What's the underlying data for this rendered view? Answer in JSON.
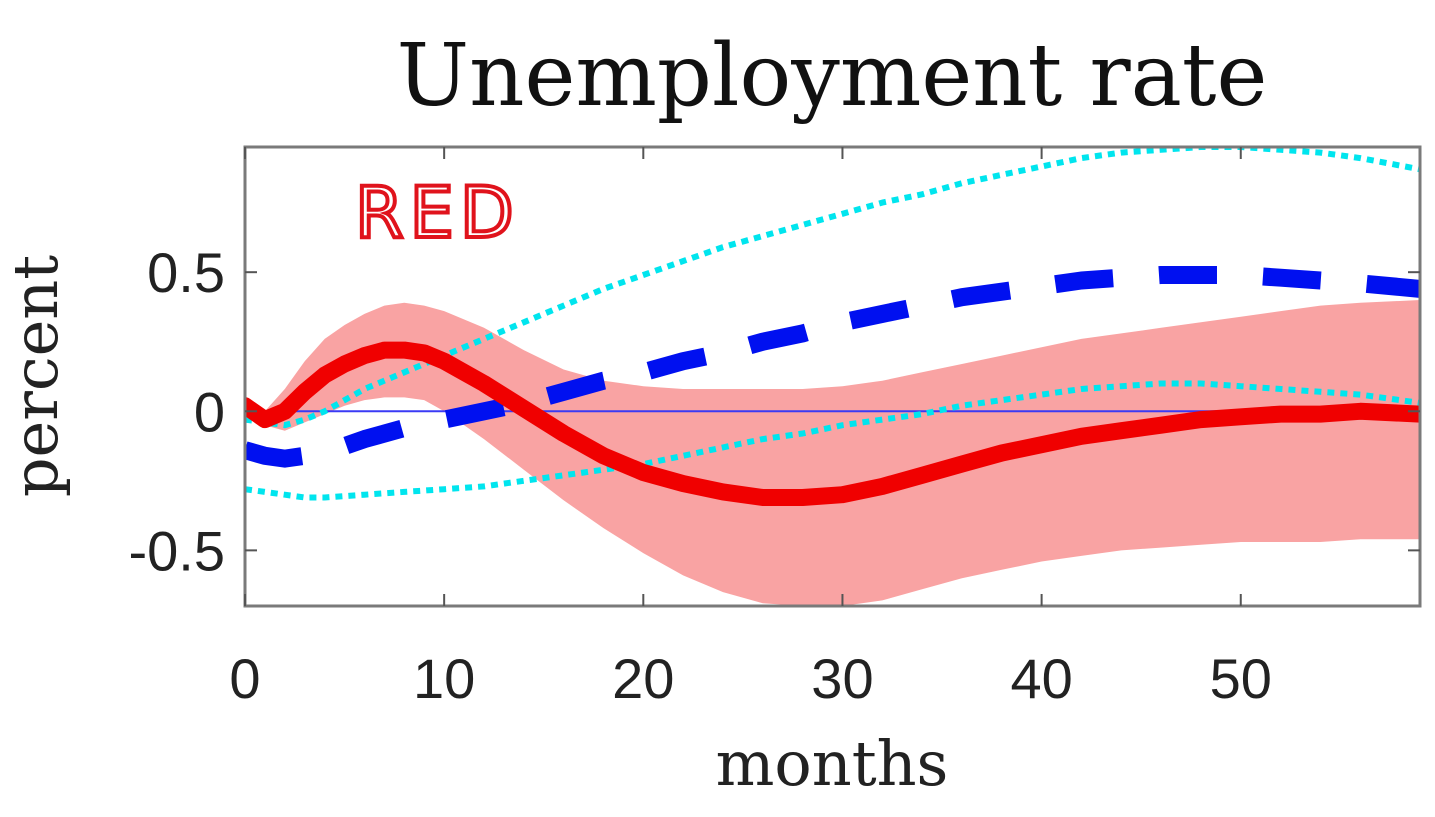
{
  "chart_data": {
    "type": "line",
    "title": "Unemployment rate",
    "xlabel": "months",
    "ylabel": "percent",
    "xlim": [
      0,
      59
    ],
    "ylim": [
      -0.7,
      0.95
    ],
    "xticks": [
      0,
      10,
      20,
      30,
      40,
      50
    ],
    "yticks": [
      -0.5,
      0,
      0.5
    ],
    "ytick_labels": [
      "-0.5",
      "0",
      "0.5"
    ],
    "grid": false,
    "legend": "none",
    "annotation": "RED",
    "colors": {
      "red_line": "#f00000",
      "red_band": "#f9a3a3",
      "blue_dashed": "#0010f0",
      "cyan_dotted": "#00e5ee",
      "zero_line": "#3a3af5",
      "annotation": "#e0131c"
    },
    "series": [
      {
        "style": "solid-red",
        "x": [
          0,
          1,
          2,
          3,
          4,
          5,
          6,
          7,
          8,
          9,
          10,
          12,
          14,
          16,
          18,
          20,
          22,
          24,
          26,
          28,
          30,
          32,
          34,
          36,
          38,
          40,
          42,
          44,
          46,
          48,
          50,
          52,
          54,
          56,
          59
        ],
        "y": [
          0.02,
          -0.03,
          0.0,
          0.07,
          0.13,
          0.17,
          0.2,
          0.22,
          0.22,
          0.21,
          0.18,
          0.1,
          0.01,
          -0.08,
          -0.16,
          -0.22,
          -0.26,
          -0.29,
          -0.31,
          -0.31,
          -0.3,
          -0.27,
          -0.23,
          -0.19,
          -0.15,
          -0.12,
          -0.09,
          -0.07,
          -0.05,
          -0.03,
          -0.02,
          -0.01,
          -0.01,
          0.0,
          -0.01
        ]
      },
      {
        "style": "dashed-blue",
        "x": [
          0,
          1,
          2,
          3,
          4,
          6,
          8,
          10,
          12,
          14,
          16,
          18,
          20,
          22,
          24,
          26,
          28,
          30,
          32,
          34,
          36,
          38,
          40,
          42,
          44,
          46,
          48,
          50,
          52,
          54,
          56,
          59
        ],
        "y": [
          -0.14,
          -0.16,
          -0.17,
          -0.16,
          -0.15,
          -0.1,
          -0.06,
          -0.03,
          0.0,
          0.03,
          0.07,
          0.11,
          0.14,
          0.18,
          0.21,
          0.25,
          0.28,
          0.32,
          0.35,
          0.38,
          0.41,
          0.43,
          0.45,
          0.47,
          0.48,
          0.49,
          0.49,
          0.49,
          0.48,
          0.47,
          0.46,
          0.44
        ]
      },
      {
        "style": "dotted-cyan-upper",
        "x": [
          0,
          1,
          2,
          3,
          4,
          6,
          8,
          10,
          12,
          14,
          16,
          18,
          20,
          22,
          24,
          26,
          28,
          30,
          32,
          34,
          36,
          38,
          40,
          42,
          44,
          46,
          48,
          50,
          52,
          54,
          56,
          59
        ],
        "y": [
          -0.03,
          -0.04,
          -0.05,
          -0.03,
          0.0,
          0.08,
          0.14,
          0.2,
          0.26,
          0.32,
          0.38,
          0.44,
          0.49,
          0.54,
          0.59,
          0.63,
          0.67,
          0.71,
          0.75,
          0.78,
          0.82,
          0.85,
          0.88,
          0.91,
          0.93,
          0.94,
          0.95,
          0.95,
          0.94,
          0.93,
          0.91,
          0.87
        ]
      },
      {
        "style": "dotted-cyan-lower",
        "x": [
          0,
          1,
          2,
          3,
          4,
          6,
          8,
          10,
          12,
          14,
          16,
          18,
          20,
          22,
          24,
          26,
          28,
          30,
          32,
          34,
          36,
          38,
          40,
          42,
          44,
          46,
          48,
          50,
          52,
          54,
          56,
          59
        ],
        "y": [
          -0.28,
          -0.29,
          -0.3,
          -0.31,
          -0.31,
          -0.3,
          -0.29,
          -0.28,
          -0.27,
          -0.25,
          -0.23,
          -0.21,
          -0.19,
          -0.16,
          -0.13,
          -0.1,
          -0.08,
          -0.05,
          -0.03,
          -0.01,
          0.02,
          0.04,
          0.06,
          0.08,
          0.09,
          0.1,
          0.1,
          0.09,
          0.08,
          0.07,
          0.06,
          0.03
        ]
      }
    ],
    "band": {
      "style": "red-confidence-band",
      "x": [
        0,
        1,
        2,
        3,
        4,
        5,
        6,
        7,
        8,
        9,
        10,
        12,
        14,
        16,
        18,
        20,
        22,
        24,
        26,
        28,
        30,
        32,
        34,
        36,
        38,
        40,
        42,
        44,
        46,
        48,
        50,
        52,
        54,
        56,
        59
      ],
      "upper": [
        0.03,
        0.0,
        0.08,
        0.18,
        0.26,
        0.31,
        0.35,
        0.38,
        0.39,
        0.38,
        0.36,
        0.3,
        0.22,
        0.15,
        0.11,
        0.09,
        0.08,
        0.08,
        0.08,
        0.08,
        0.09,
        0.11,
        0.14,
        0.17,
        0.2,
        0.23,
        0.26,
        0.28,
        0.3,
        0.32,
        0.34,
        0.36,
        0.38,
        0.39,
        0.4
      ],
      "lower": [
        0.01,
        -0.05,
        -0.07,
        -0.04,
        -0.01,
        0.02,
        0.04,
        0.05,
        0.05,
        0.04,
        0.0,
        -0.1,
        -0.21,
        -0.32,
        -0.42,
        -0.51,
        -0.59,
        -0.65,
        -0.69,
        -0.7,
        -0.7,
        -0.68,
        -0.64,
        -0.6,
        -0.57,
        -0.54,
        -0.52,
        -0.5,
        -0.49,
        -0.48,
        -0.47,
        -0.47,
        -0.47,
        -0.46,
        -0.46
      ]
    }
  }
}
